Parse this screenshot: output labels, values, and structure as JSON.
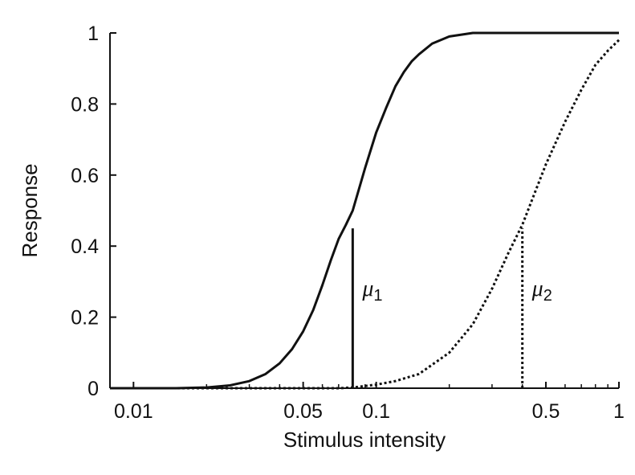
{
  "chart_data": {
    "type": "line",
    "title": "",
    "xlabel": "Stimulus intensity",
    "ylabel": "Response",
    "xscale": "log",
    "xlim": [
      0.008,
      1
    ],
    "ylim": [
      0,
      1
    ],
    "grid": false,
    "x_ticks": [
      {
        "value": 0.01,
        "label": "0.01"
      },
      {
        "value": 0.05,
        "label": "0.05"
      },
      {
        "value": 0.1,
        "label": "0.1"
      },
      {
        "value": 0.5,
        "label": "0.5"
      },
      {
        "value": 1,
        "label": "1"
      }
    ],
    "x_minor_ticks": [
      0.02,
      0.03,
      0.04,
      0.06,
      0.07,
      0.08,
      0.09,
      0.2,
      0.3,
      0.4,
      0.6,
      0.7,
      0.8,
      0.9
    ],
    "y_ticks": [
      {
        "value": 0,
        "label": "0"
      },
      {
        "value": 0.2,
        "label": "0.2"
      },
      {
        "value": 0.4,
        "label": "0.4"
      },
      {
        "value": 0.6,
        "label": "0.6"
      },
      {
        "value": 0.8,
        "label": "0.8"
      },
      {
        "value": 1,
        "label": "1"
      }
    ],
    "series": [
      {
        "style": "solid",
        "color": "#111111",
        "x": [
          0.008,
          0.01,
          0.015,
          0.02,
          0.025,
          0.03,
          0.035,
          0.04,
          0.045,
          0.05,
          0.055,
          0.06,
          0.065,
          0.07,
          0.075,
          0.08,
          0.09,
          0.1,
          0.11,
          0.12,
          0.13,
          0.14,
          0.15,
          0.17,
          0.2,
          0.25,
          0.3,
          0.4,
          0.5,
          0.7,
          1
        ],
        "y": [
          0.0,
          0.0,
          0.0,
          0.002,
          0.008,
          0.02,
          0.04,
          0.07,
          0.11,
          0.16,
          0.22,
          0.29,
          0.36,
          0.42,
          0.46,
          0.5,
          0.62,
          0.72,
          0.79,
          0.85,
          0.89,
          0.92,
          0.94,
          0.97,
          0.99,
          1.0,
          1.0,
          1.0,
          1.0,
          1.0,
          1.0
        ]
      },
      {
        "style": "dotted",
        "color": "#111111",
        "x": [
          0.008,
          0.02,
          0.05,
          0.07,
          0.08,
          0.1,
          0.12,
          0.15,
          0.2,
          0.25,
          0.3,
          0.35,
          0.4,
          0.45,
          0.5,
          0.6,
          0.7,
          0.8,
          0.9,
          1
        ],
        "y": [
          0.0,
          0.0,
          0.0,
          0.0,
          0.002,
          0.01,
          0.02,
          0.04,
          0.1,
          0.18,
          0.28,
          0.38,
          0.46,
          0.55,
          0.63,
          0.75,
          0.84,
          0.91,
          0.95,
          0.98
        ]
      }
    ],
    "markers": [
      {
        "x": 0.08,
        "y_top": 0.45,
        "style": "solid",
        "label": "μ",
        "subscript": "1"
      },
      {
        "x": 0.4,
        "y_top": 0.45,
        "style": "dotted",
        "label": "μ",
        "subscript": "2"
      }
    ]
  }
}
